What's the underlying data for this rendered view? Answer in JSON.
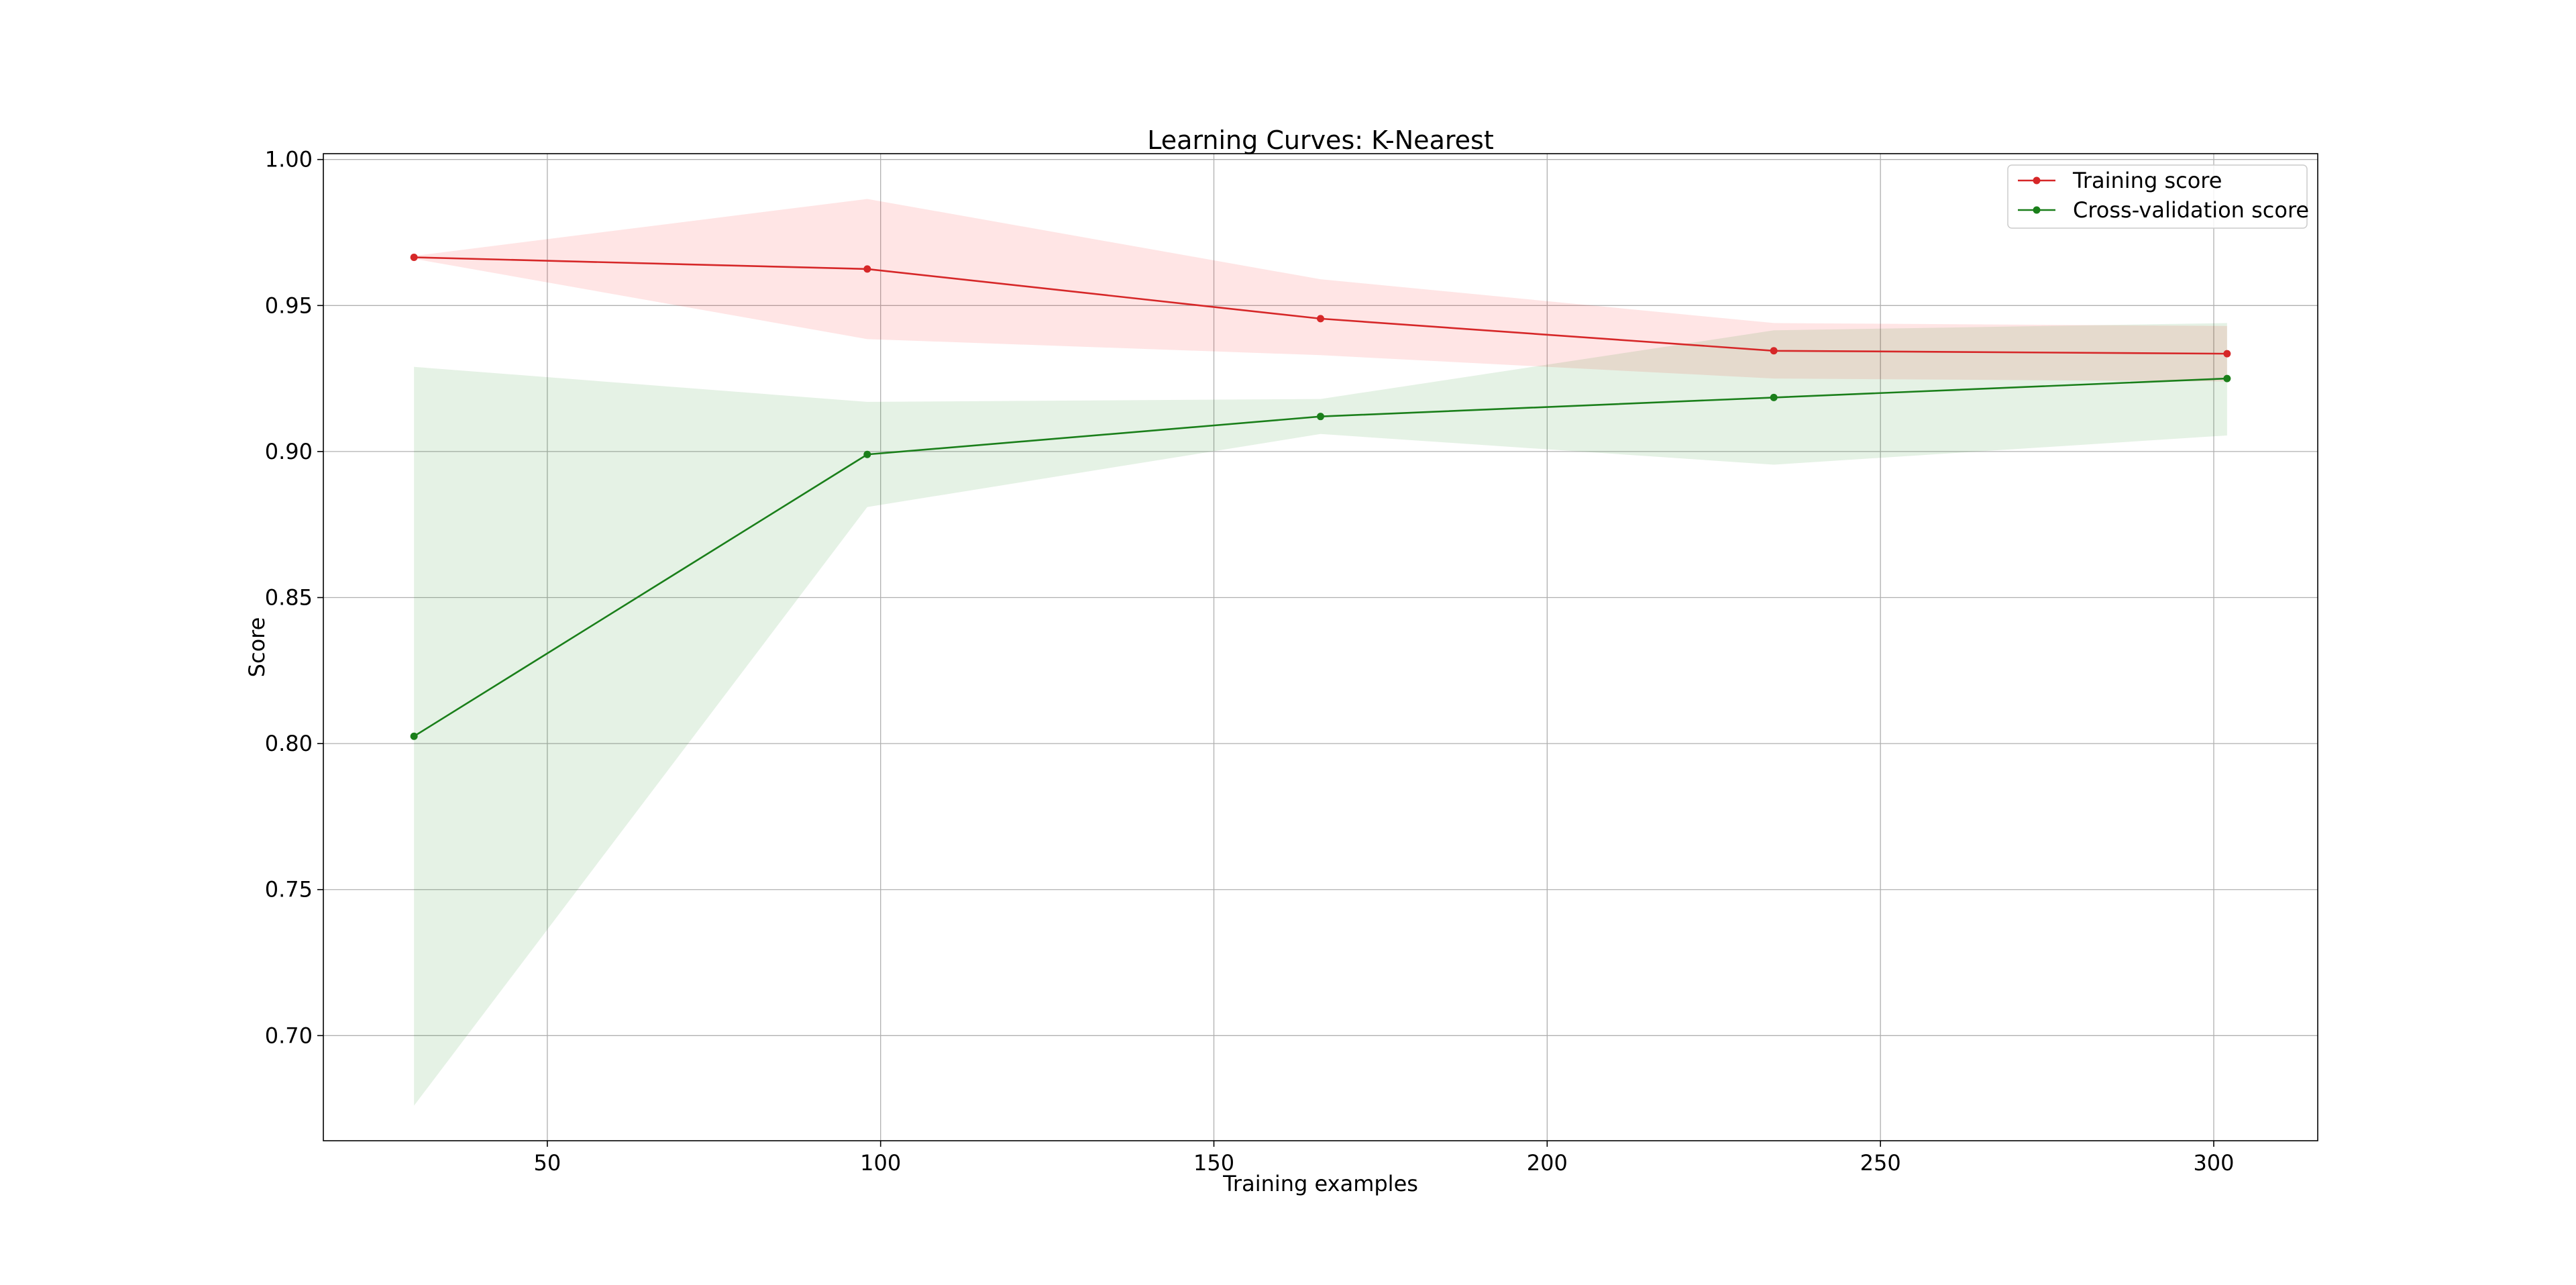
{
  "chart_data": {
    "type": "line",
    "title": "Learning Curves: K-Nearest",
    "xlabel": "Training examples",
    "ylabel": "Score",
    "xlim": [
      16.4,
      315.6
    ],
    "ylim": [
      0.664,
      1.002
    ],
    "x_ticks": [
      50,
      100,
      150,
      200,
      250,
      300
    ],
    "x_tick_labels": [
      "50",
      "100",
      "150",
      "200",
      "250",
      "300"
    ],
    "y_ticks": [
      0.7,
      0.75,
      0.8,
      0.85,
      0.9,
      0.95,
      1.0
    ],
    "y_tick_labels": [
      "0.70",
      "0.75",
      "0.80",
      "0.85",
      "0.90",
      "0.95",
      "1.00"
    ],
    "grid": true,
    "legend_position": "top-right",
    "x": [
      30,
      98,
      166,
      234,
      302
    ],
    "series": [
      {
        "name": "Training score",
        "color": "#d62728",
        "band_color": "#ff0000",
        "values": [
          0.9665,
          0.9625,
          0.9455,
          0.9345,
          0.9335
        ],
        "band_upper": [
          0.967,
          0.9865,
          0.959,
          0.944,
          0.943
        ],
        "band_lower": [
          0.966,
          0.9385,
          0.933,
          0.925,
          0.924
        ]
      },
      {
        "name": "Cross-validation score",
        "color": "#1a7f1a",
        "band_color": "#008000",
        "values": [
          0.8025,
          0.899,
          0.912,
          0.9185,
          0.925
        ],
        "band_upper": [
          0.929,
          0.917,
          0.918,
          0.9415,
          0.944
        ],
        "band_lower": [
          0.676,
          0.881,
          0.906,
          0.8955,
          0.9055
        ]
      }
    ]
  }
}
